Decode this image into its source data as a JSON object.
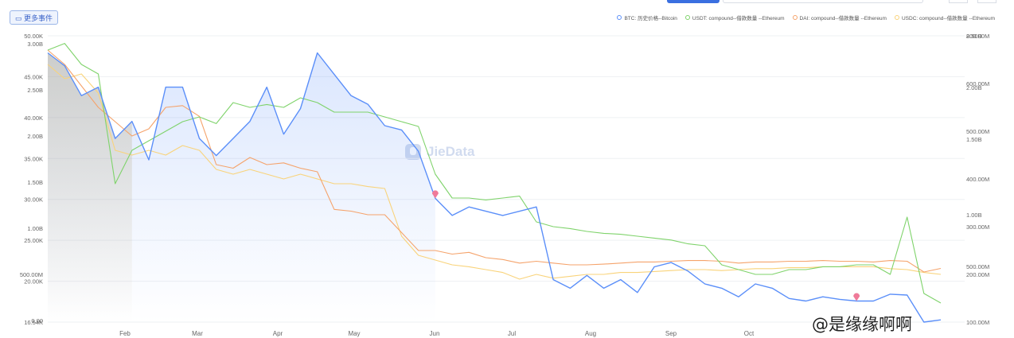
{
  "toolbar": {
    "more_events_label": "更多事件"
  },
  "colors": {
    "btc": "#5b8ff9",
    "usdt": "#7fd36b",
    "dai": "#f5a36b",
    "usdc": "#f9d37a",
    "marker": "#ef7a99"
  },
  "watermark": {
    "brand": "JieData",
    "caption": "@是缘缘啊啊"
  },
  "chart_data": {
    "type": "line",
    "title": "",
    "x_labels": [
      "Feb",
      "Mar",
      "Apr",
      "May",
      "Jun",
      "Jul",
      "Aug",
      "Sep",
      "Oct"
    ],
    "legend": [
      "BTC: 历史价格--Bitcoin",
      "USDT: compound--借款数量 --Ethereum",
      "DAI: compound--借款数量 --Ethereum",
      "USDC: compound--借款数量 --Ethereum"
    ],
    "legend_position": "top-right",
    "left_axis_btc": [
      "50.00K",
      "45.00K",
      "40.00K",
      "35.00K",
      "30.00K",
      "25.00K",
      "20.00K",
      "16.54K"
    ],
    "left_axis_usdt": [
      "3.00B",
      "2.50B",
      "2.00B",
      "1.50B",
      "1.00B",
      "500.00M",
      "0.00"
    ],
    "right_axis_usdc": [
      "2.50B",
      "2.00B",
      "1.50B",
      "1.00B",
      "500.00M"
    ],
    "right_axis_dai": [
      "800.00M",
      "600.00M",
      "500.00M",
      "400.00M",
      "300.00M",
      "200.00M",
      "100.00M"
    ],
    "btc_range": [
      16540,
      50000
    ],
    "series": [
      {
        "name": "BTC: 历史价格--Bitcoin",
        "values": [
          48000,
          46500,
          43000,
          44000,
          38000,
          40000,
          35500,
          44000,
          44000,
          38000,
          36000,
          38000,
          40000,
          44000,
          38500,
          41500,
          48000,
          45500,
          43000,
          42000,
          39500,
          39000,
          36500,
          31000,
          29000,
          30000,
          29500,
          29000,
          29500,
          30000,
          21500,
          20500,
          22000,
          20500,
          21500,
          20000,
          23000,
          23500,
          22500,
          21000,
          20500,
          19500,
          21000,
          20500,
          19300,
          19000,
          19500,
          19200,
          19000,
          19000,
          19800,
          19700,
          16500,
          16800
        ]
      },
      {
        "name": "USDT: compound--借款数量 --Ethereum",
        "values": [
          2.85,
          2.92,
          2.7,
          2.6,
          1.45,
          1.8,
          1.9,
          2.0,
          2.1,
          2.15,
          2.08,
          2.3,
          2.25,
          2.28,
          2.25,
          2.35,
          2.3,
          2.2,
          2.2,
          2.2,
          2.15,
          2.1,
          2.05,
          1.55,
          1.3,
          1.3,
          1.28,
          1.3,
          1.32,
          1.05,
          1.0,
          0.98,
          0.95,
          0.93,
          0.92,
          0.9,
          0.88,
          0.86,
          0.82,
          0.8,
          0.6,
          0.55,
          0.5,
          0.5,
          0.55,
          0.55,
          0.58,
          0.58,
          0.6,
          0.6,
          0.5,
          1.1,
          0.3,
          0.2
        ]
      },
      {
        "name": "DAI: compound--借款数量 --Ethereum",
        "values": [
          760,
          720,
          660,
          600,
          560,
          520,
          540,
          600,
          605,
          575,
          440,
          430,
          460,
          440,
          445,
          430,
          420,
          315,
          310,
          300,
          300,
          250,
          200,
          200,
          190,
          195,
          180,
          175,
          165,
          170,
          165,
          160,
          160,
          162,
          165,
          168,
          168,
          170,
          172,
          172,
          170,
          165,
          168,
          168,
          170,
          170,
          172,
          170,
          170,
          168,
          172,
          170,
          140,
          150
        ]
      },
      {
        "name": "USDC: compound--借款数量 --Ethereum",
        "values": [
          2.7,
          2.55,
          2.6,
          2.4,
          1.8,
          1.75,
          1.8,
          1.75,
          1.85,
          1.8,
          1.6,
          1.55,
          1.6,
          1.55,
          1.5,
          1.55,
          1.5,
          1.45,
          1.45,
          1.42,
          1.4,
          0.9,
          0.7,
          0.65,
          0.6,
          0.58,
          0.55,
          0.52,
          0.45,
          0.5,
          0.46,
          0.48,
          0.5,
          0.5,
          0.52,
          0.52,
          0.53,
          0.54,
          0.55,
          0.55,
          0.54,
          0.55,
          0.56,
          0.56,
          0.57,
          0.57,
          0.58,
          0.58,
          0.58,
          0.58,
          0.56,
          0.55,
          0.52,
          0.5
        ]
      }
    ],
    "event_markers": [
      {
        "series_index": 0,
        "point_index": 23
      },
      {
        "series_index": 0,
        "point_index": 48
      }
    ]
  }
}
